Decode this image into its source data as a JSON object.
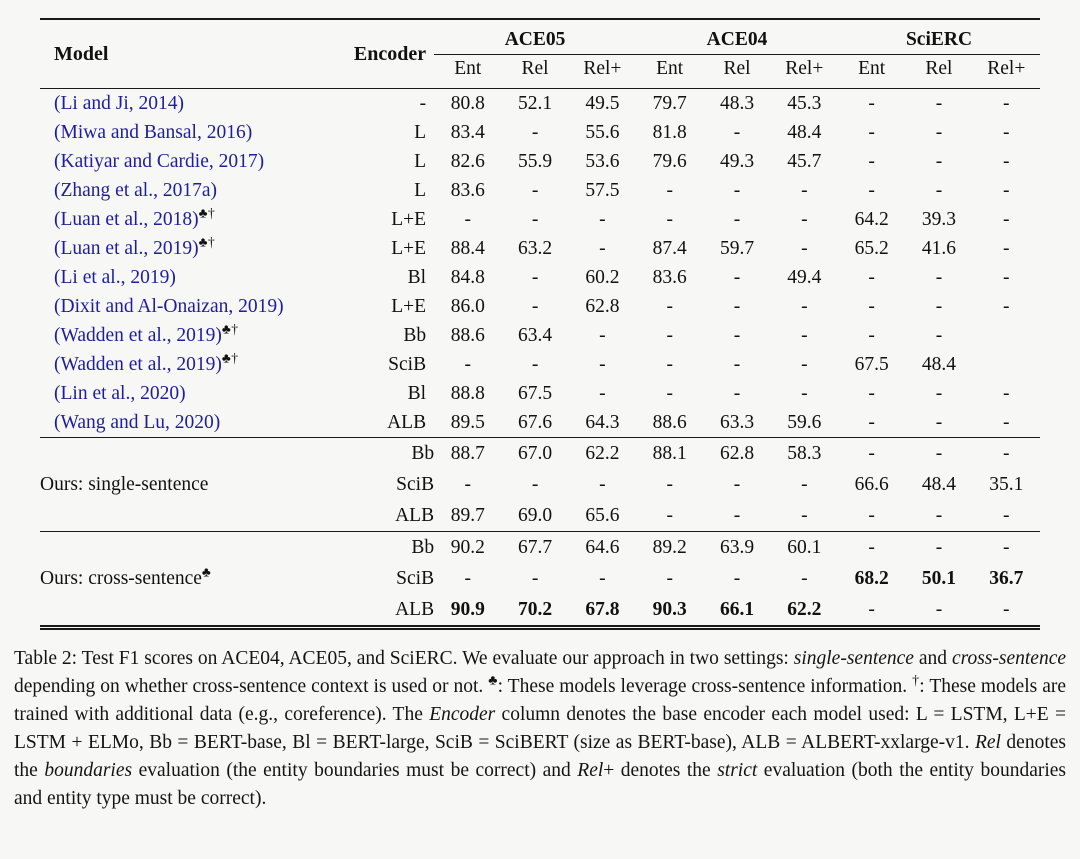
{
  "page": {
    "background": "#f7f7f6",
    "text_color": "#111111",
    "link_color": "#1e1e9c",
    "rule_color": "#1a1a1a"
  },
  "table": {
    "header": {
      "model": "Model",
      "encoder": "Encoder",
      "groups": [
        "ACE05",
        "ACE04",
        "SciERC"
      ],
      "subcolumns": [
        "Ent",
        "Rel",
        "Rel+"
      ]
    },
    "published": [
      {
        "model": "(Li and Ji, 2014)",
        "marks": "",
        "encoder": "-",
        "values": [
          "80.8",
          "52.1",
          "49.5",
          "79.7",
          "48.3",
          "45.3",
          "-",
          "-",
          "-"
        ]
      },
      {
        "model": "(Miwa and Bansal, 2016)",
        "marks": "",
        "encoder": "L",
        "values": [
          "83.4",
          "-",
          "55.6",
          "81.8",
          "-",
          "48.4",
          "-",
          "-",
          "-"
        ]
      },
      {
        "model": "(Katiyar and Cardie, 2017)",
        "marks": "",
        "encoder": "L",
        "values": [
          "82.6",
          "55.9",
          "53.6",
          "79.6",
          "49.3",
          "45.7",
          "-",
          "-",
          "-"
        ]
      },
      {
        "model": "(Zhang et al., 2017a)",
        "marks": "",
        "encoder": "L",
        "values": [
          "83.6",
          "-",
          "57.5",
          "-",
          "-",
          "-",
          "-",
          "-",
          "-"
        ]
      },
      {
        "model": "(Luan et al., 2018)",
        "marks": "♣†",
        "encoder": "L+E",
        "values": [
          "-",
          "-",
          "-",
          "-",
          "-",
          "-",
          "64.2",
          "39.3",
          "-"
        ]
      },
      {
        "model": "(Luan et al., 2019)",
        "marks": "♣†",
        "encoder": "L+E",
        "values": [
          "88.4",
          "63.2",
          "-",
          "87.4",
          "59.7",
          "-",
          "65.2",
          "41.6",
          "-"
        ]
      },
      {
        "model": "(Li et al., 2019)",
        "marks": "",
        "encoder": "Bl",
        "values": [
          "84.8",
          "-",
          "60.2",
          "83.6",
          "-",
          "49.4",
          "-",
          "-",
          "-"
        ]
      },
      {
        "model": "(Dixit and Al-Onaizan, 2019)",
        "marks": "",
        "encoder": "L+E",
        "values": [
          "86.0",
          "-",
          "62.8",
          "-",
          "-",
          "-",
          "-",
          "-",
          "-"
        ]
      },
      {
        "model": "(Wadden et al., 2019)",
        "marks": "♣†",
        "encoder": "Bb",
        "values": [
          "88.6",
          "63.4",
          "-",
          "-",
          "-",
          "-",
          "-",
          "-",
          ""
        ]
      },
      {
        "model": "(Wadden et al., 2019)",
        "marks": "♣†",
        "encoder": "SciB",
        "values": [
          "-",
          "-",
          "-",
          "-",
          "-",
          "-",
          "67.5",
          "48.4",
          ""
        ]
      },
      {
        "model": "(Lin et al., 2020)",
        "marks": "",
        "encoder": "Bl",
        "values": [
          "88.8",
          "67.5",
          "-",
          "-",
          "-",
          "-",
          "-",
          "-",
          "-"
        ]
      },
      {
        "model": "(Wang and Lu, 2020)",
        "marks": "",
        "encoder": "ALB",
        "values": [
          "89.5",
          "67.6",
          "64.3",
          "88.6",
          "63.3",
          "59.6",
          "-",
          "-",
          "-"
        ]
      }
    ],
    "ours_sections": [
      {
        "name": "ours-single-sentence",
        "label": "Ours: single-sentence",
        "marks": "",
        "rows": [
          {
            "encoder": "Bb",
            "values": [
              "88.7",
              "67.0",
              "62.2",
              "88.1",
              "62.8",
              "58.3",
              "-",
              "-",
              "-"
            ],
            "bold": []
          },
          {
            "encoder": "SciB",
            "values": [
              "-",
              "-",
              "-",
              "-",
              "-",
              "-",
              "66.6",
              "48.4",
              "35.1"
            ],
            "bold": []
          },
          {
            "encoder": "ALB",
            "values": [
              "89.7",
              "69.0",
              "65.6",
              "-",
              "-",
              "-",
              "-",
              "-",
              "-"
            ],
            "bold": []
          }
        ]
      },
      {
        "name": "ours-cross-sentence",
        "label": "Ours: cross-sentence",
        "marks": "♣",
        "rows": [
          {
            "encoder": "Bb",
            "values": [
              "90.2",
              "67.7",
              "64.6",
              "89.2",
              "63.9",
              "60.1",
              "-",
              "-",
              "-"
            ],
            "bold": []
          },
          {
            "encoder": "SciB",
            "values": [
              "-",
              "-",
              "-",
              "-",
              "-",
              "-",
              "68.2",
              "50.1",
              "36.7"
            ],
            "bold": [
              6,
              7,
              8
            ]
          },
          {
            "encoder": "ALB",
            "values": [
              "90.9",
              "70.2",
              "67.8",
              "90.3",
              "66.1",
              "62.2",
              "-",
              "-",
              "-"
            ],
            "bold": [
              0,
              1,
              2,
              3,
              4,
              5
            ]
          }
        ]
      }
    ]
  },
  "caption": {
    "segments": [
      {
        "text": "Table 2: Test F1 scores on ACE04, ACE05, and SciERC. We evaluate our approach in two settings: "
      },
      {
        "text": "single-sentence",
        "italic": true
      },
      {
        "text": " and "
      },
      {
        "text": "cross-sentence",
        "italic": true
      },
      {
        "text": " depending on whether cross-sentence context is used or not. "
      },
      {
        "text": "♣",
        "sup": true
      },
      {
        "text": ": These models leverage cross-sentence information. "
      },
      {
        "text": "†",
        "sup": true
      },
      {
        "text": ": These models are trained with additional data (e.g., coreference). The "
      },
      {
        "text": "Encoder",
        "italic": true
      },
      {
        "text": " column denotes the base encoder each model used: L = LSTM, L+E = LSTM + ELMo, Bb = BERT-base, Bl = BERT-large, SciB = SciBERT (size as BERT-base), ALB = ALBERT-xxlarge-v1. "
      },
      {
        "text": "Rel",
        "italic": true
      },
      {
        "text": " denotes the "
      },
      {
        "text": "boundaries",
        "italic": true
      },
      {
        "text": " evaluation (the entity boundaries must be correct) and "
      },
      {
        "text": "Rel",
        "italic": true
      },
      {
        "text": "+ denotes the "
      },
      {
        "text": "strict",
        "italic": true
      },
      {
        "text": " evaluation (both the entity boundaries and entity type must be correct)."
      }
    ]
  }
}
